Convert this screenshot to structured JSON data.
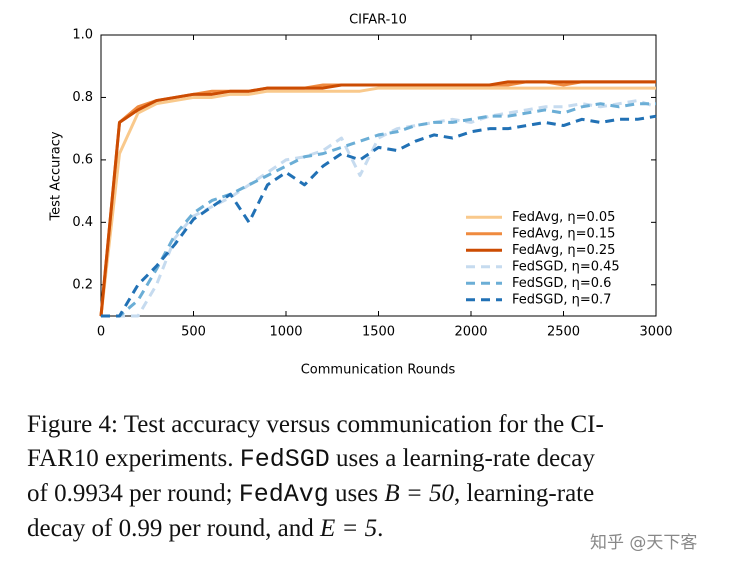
{
  "chart_data": {
    "type": "line",
    "title": "CIFAR-10",
    "x_label": "Communication Rounds",
    "y_label": "Test Accuracy",
    "x": [
      0,
      100,
      200,
      300,
      400,
      500,
      600,
      700,
      800,
      900,
      1000,
      1100,
      1200,
      1300,
      1400,
      1500,
      1600,
      1700,
      1800,
      1900,
      2000,
      2100,
      2200,
      2300,
      2400,
      2500,
      2600,
      2700,
      2800,
      2900,
      3000
    ],
    "series": [
      {
        "name": "FedAvg, η=0.05",
        "color": "#f9c98c",
        "linestyle": "solid",
        "values": [
          0.1,
          0.62,
          0.75,
          0.78,
          0.79,
          0.8,
          0.8,
          0.81,
          0.81,
          0.82,
          0.82,
          0.82,
          0.82,
          0.82,
          0.82,
          0.83,
          0.83,
          0.83,
          0.83,
          0.83,
          0.83,
          0.83,
          0.83,
          0.83,
          0.83,
          0.83,
          0.83,
          0.83,
          0.83,
          0.83,
          0.83
        ]
      },
      {
        "name": "FedAvg, η=0.15",
        "color": "#ef8a3f",
        "linestyle": "solid",
        "values": [
          0.1,
          0.72,
          0.77,
          0.79,
          0.8,
          0.81,
          0.82,
          0.82,
          0.82,
          0.83,
          0.83,
          0.83,
          0.84,
          0.84,
          0.84,
          0.84,
          0.84,
          0.84,
          0.84,
          0.84,
          0.84,
          0.84,
          0.84,
          0.85,
          0.85,
          0.84,
          0.85,
          0.85,
          0.85,
          0.85,
          0.85
        ]
      },
      {
        "name": "FedAvg, η=0.25",
        "color": "#cc4c02",
        "linestyle": "solid",
        "values": [
          0.1,
          0.72,
          0.76,
          0.79,
          0.8,
          0.81,
          0.81,
          0.82,
          0.82,
          0.83,
          0.83,
          0.83,
          0.83,
          0.84,
          0.84,
          0.84,
          0.84,
          0.84,
          0.84,
          0.84,
          0.84,
          0.84,
          0.85,
          0.85,
          0.85,
          0.85,
          0.85,
          0.85,
          0.85,
          0.85,
          0.85
        ]
      },
      {
        "name": "FedSGD, η=0.45",
        "color": "#c6dbef",
        "linestyle": "dashed",
        "values": [
          0.1,
          0.1,
          0.1,
          0.2,
          0.35,
          0.42,
          0.45,
          0.48,
          0.52,
          0.56,
          0.6,
          0.61,
          0.63,
          0.67,
          0.55,
          0.67,
          0.7,
          0.71,
          0.72,
          0.73,
          0.72,
          0.74,
          0.75,
          0.76,
          0.77,
          0.77,
          0.78,
          0.77,
          0.78,
          0.79,
          0.77
        ]
      },
      {
        "name": "FedSGD, η=0.6",
        "color": "#6baed6",
        "linestyle": "dashed",
        "values": [
          0.1,
          0.1,
          0.15,
          0.25,
          0.36,
          0.43,
          0.47,
          0.49,
          0.52,
          0.55,
          0.58,
          0.61,
          0.62,
          0.64,
          0.66,
          0.68,
          0.69,
          0.71,
          0.72,
          0.72,
          0.73,
          0.74,
          0.74,
          0.75,
          0.76,
          0.75,
          0.77,
          0.78,
          0.77,
          0.78,
          0.78
        ]
      },
      {
        "name": "FedSGD, η=0.7",
        "color": "#2171b5",
        "linestyle": "dashed",
        "values": [
          0.1,
          0.1,
          0.2,
          0.26,
          0.33,
          0.41,
          0.45,
          0.49,
          0.4,
          0.52,
          0.56,
          0.52,
          0.58,
          0.62,
          0.6,
          0.64,
          0.63,
          0.66,
          0.68,
          0.67,
          0.69,
          0.7,
          0.7,
          0.71,
          0.72,
          0.71,
          0.73,
          0.72,
          0.73,
          0.73,
          0.74
        ]
      }
    ],
    "xlim": [
      0,
      3000
    ],
    "xticks": [
      0,
      500,
      1000,
      1500,
      2000,
      2500,
      3000
    ],
    "ylim": [
      0.1,
      1.0
    ],
    "yticks": [
      0.2,
      0.4,
      0.6,
      0.8,
      {
        "value": 1,
        "label": "1.0"
      }
    ],
    "grid": false,
    "legend": "lower right"
  },
  "caption": {
    "lines": [
      [
        {
          "text": "Figure 4: Test accuracy versus communication for the CI-",
          "style": "text"
        }
      ],
      [
        {
          "text": "FAR10 experiments. ",
          "style": "text"
        },
        {
          "text": "FedSGD",
          "style": "mono"
        },
        {
          "text": " uses a learning-rate decay",
          "style": "text"
        }
      ],
      [
        {
          "text": "of 0.9934 per round; ",
          "style": "text"
        },
        {
          "text": "FedAvg",
          "style": "mono"
        },
        {
          "text": " uses ",
          "style": "text"
        },
        {
          "text": "B = 50",
          "style": "math"
        },
        {
          "text": ", learning-rate",
          "style": "text"
        }
      ],
      [
        {
          "text": "decay of 0.99 per round, and ",
          "style": "text"
        },
        {
          "text": "E = 5",
          "style": "math"
        },
        {
          "text": ".",
          "style": "text"
        }
      ]
    ]
  },
  "watermark": "知乎 @天下客"
}
